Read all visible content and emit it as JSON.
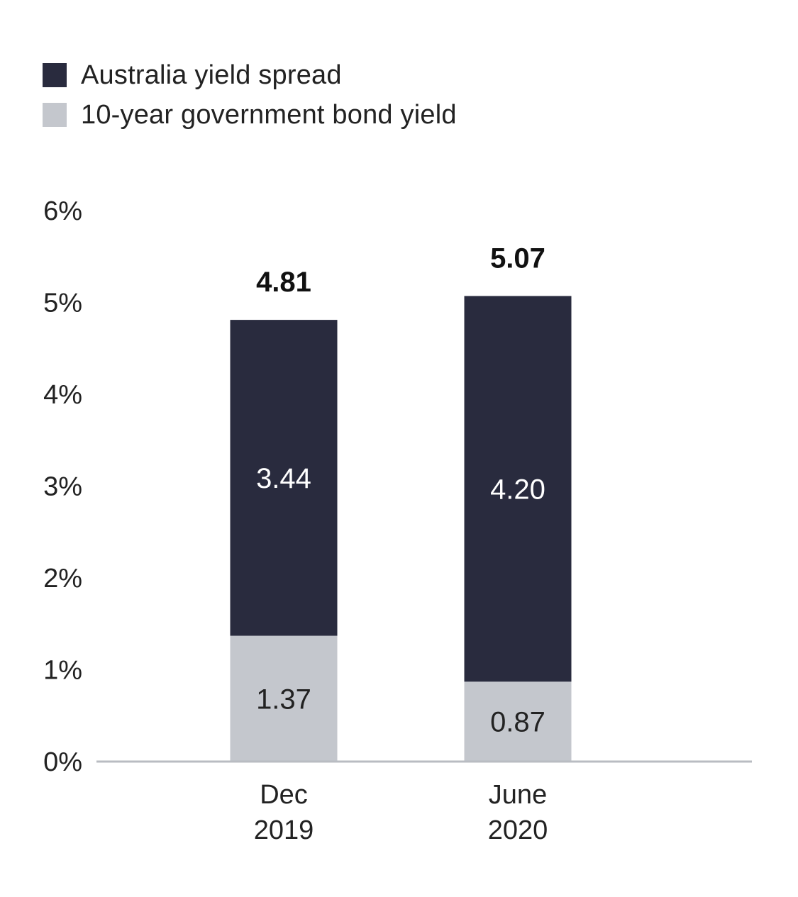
{
  "chart_data": {
    "type": "bar",
    "stacked": true,
    "title": "",
    "xlabel": "",
    "ylabel": "",
    "ylim": [
      0,
      6
    ],
    "y_ticks": [
      {
        "value": 0,
        "label": "0%"
      },
      {
        "value": 1,
        "label": "1%"
      },
      {
        "value": 2,
        "label": "2%"
      },
      {
        "value": 3,
        "label": "3%"
      },
      {
        "value": 4,
        "label": "4%"
      },
      {
        "value": 5,
        "label": "5%"
      },
      {
        "value": 6,
        "label": "6%"
      }
    ],
    "categories": [
      {
        "line1": "Dec",
        "line2": "2019"
      },
      {
        "line1": "June",
        "line2": "2020"
      }
    ],
    "series": [
      {
        "name": "10-year government bond yield",
        "color": "#c4c7cd",
        "label_color": "#222222",
        "values": [
          1.37,
          0.87
        ],
        "labels": [
          "1.37",
          "0.87"
        ]
      },
      {
        "name": "Australia yield spread",
        "color": "#292b3e",
        "label_color": "#ffffff",
        "values": [
          3.44,
          4.2
        ],
        "labels": [
          "3.44",
          "4.20"
        ]
      }
    ],
    "totals": [
      4.81,
      5.07
    ],
    "total_labels": [
      "4.81",
      "5.07"
    ],
    "grid": false,
    "legend_position": "top-left"
  },
  "legend": {
    "items": [
      {
        "label": "Australia yield spread",
        "color": "#292b3e"
      },
      {
        "label": "10-year government bond yield",
        "color": "#c4c7cd"
      }
    ]
  }
}
